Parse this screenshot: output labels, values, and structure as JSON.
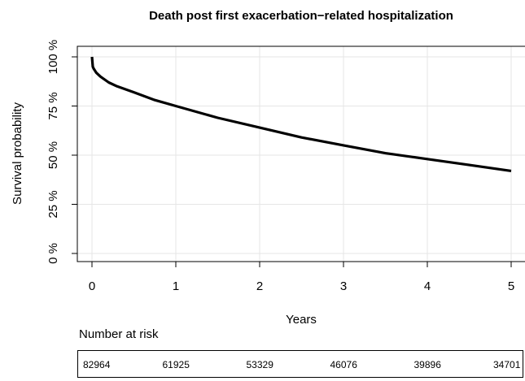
{
  "chart_data": {
    "type": "line",
    "title": "Death post first exacerbation−related hospitalization",
    "xlabel": "Years",
    "ylabel": "Survival probability",
    "xlim": [
      0,
      5
    ],
    "ylim": [
      0,
      100
    ],
    "x_ticks": [
      "0",
      "1",
      "2",
      "3",
      "4",
      "5"
    ],
    "y_ticks": [
      "0 %",
      "25 %",
      "50 %",
      "75 %",
      "100 %"
    ],
    "grid": true,
    "series": [
      {
        "x": [
          0,
          0.01,
          0.02,
          0.05,
          0.1,
          0.2,
          0.3,
          0.5,
          0.75,
          1,
          1.5,
          2,
          2.5,
          3,
          3.5,
          4,
          4.5,
          5
        ],
        "y": [
          100,
          95,
          94,
          92,
          90,
          87,
          85,
          82,
          78,
          75,
          69,
          64,
          59,
          55,
          51,
          48,
          45,
          42
        ]
      }
    ],
    "risk_table": {
      "title": "Number at risk",
      "values": [
        "82964",
        "61925",
        "53329",
        "46076",
        "39896",
        "34701"
      ]
    }
  }
}
